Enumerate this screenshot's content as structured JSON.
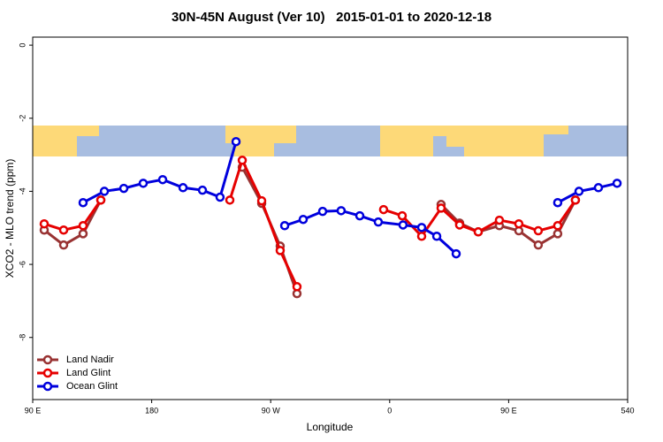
{
  "chart_data": {
    "type": "line",
    "title": "30N-45N August (Ver 10)   2015-01-01 to 2020-12-18",
    "x_label": "Longitude",
    "y_label": "XCO2 - MLO trend (ppm)",
    "xlim": [
      90,
      540
    ],
    "ylim": [
      -9.7,
      0.22
    ],
    "xticks": [
      {
        "value": 90,
        "label": "90 E"
      },
      180,
      {
        "value": 270,
        "label": "90 W"
      },
      {
        "value": 360,
        "label": "0"
      },
      {
        "value": 450,
        "label": "90 E"
      },
      540
    ],
    "yticks": [
      0,
      -2,
      -4,
      -6,
      -8
    ],
    "legend": "bottom-left",
    "series": [
      {
        "name": "Land Nadir",
        "color": "#993333",
        "x": [
          98.7,
          113.4,
          128.1,
          141.5,
          null,
          248.5,
          263.2,
          277.2,
          289.9,
          null,
          398.9,
          412.9,
          427.0,
          443.0,
          457.7,
          472.4,
          487.1,
          500.5
        ],
        "values": [
          -5.06,
          -5.47,
          -5.16,
          -4.24,
          null,
          -3.34,
          -4.33,
          -5.5,
          -6.8,
          null,
          -4.36,
          -4.87,
          -5.11,
          -4.94,
          -5.08,
          -5.47,
          -5.16,
          -4.24
        ]
      },
      {
        "name": "Land Glint",
        "color": "#e60000",
        "x": [
          98.7,
          113.4,
          128.1,
          141.5,
          null,
          239.1,
          248.5,
          263.2,
          277.2,
          289.9,
          null,
          355.4,
          369.5,
          384.2,
          398.9,
          412.9,
          427.0,
          443.0,
          457.7,
          472.4,
          487.1,
          500.5
        ],
        "values": [
          -4.89,
          -5.06,
          -4.94,
          -4.24,
          null,
          -4.24,
          -3.15,
          -4.26,
          -5.62,
          -6.61,
          null,
          -4.5,
          -4.67,
          -5.23,
          -4.46,
          -4.92,
          -5.11,
          -4.79,
          -4.89,
          -5.08,
          -4.94,
          -4.24
        ]
      },
      {
        "name": "Ocean Glint",
        "color": "#0000dd",
        "x": [
          128.1,
          144.2,
          158.9,
          173.6,
          188.3,
          203.7,
          218.4,
          231.7,
          243.8,
          null,
          280.6,
          294.6,
          309.3,
          323.3,
          337.4,
          351.4,
          370.1,
          384.2,
          395.6,
          410.3,
          null,
          487.1,
          503.2,
          517.9,
          532.0
        ],
        "values": [
          -4.31,
          -4.0,
          -3.92,
          -3.78,
          -3.68,
          -3.9,
          -3.97,
          -4.16,
          -2.64,
          null,
          -4.94,
          -4.77,
          -4.55,
          -4.53,
          -4.67,
          -4.84,
          -4.92,
          -4.99,
          -5.23,
          -5.71,
          null,
          -4.31,
          -4.0,
          -3.9,
          -3.78
        ]
      }
    ]
  }
}
